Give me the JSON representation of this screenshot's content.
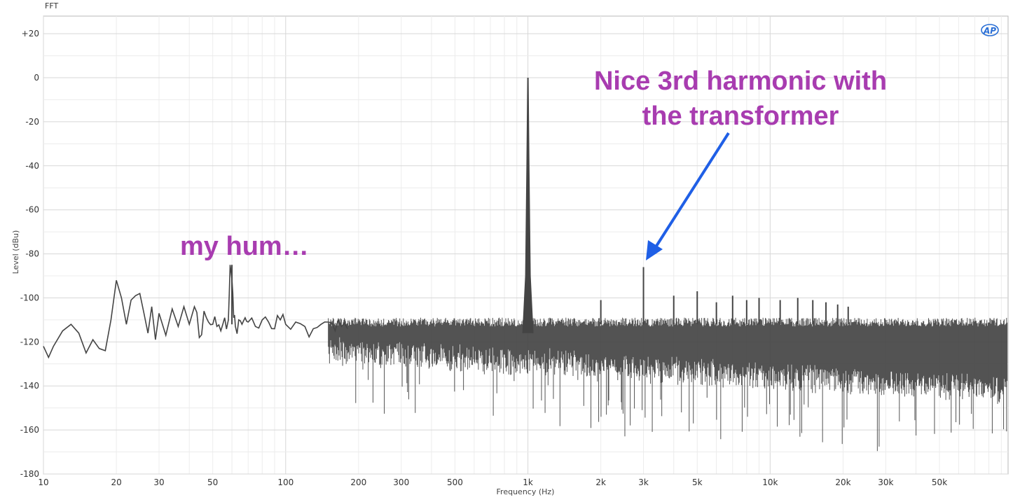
{
  "panel_title": "FFT",
  "logo_text": "AP",
  "colors": {
    "trace": "#444444",
    "grid_major": "#d7d7d7",
    "grid_minor": "#ececec",
    "annotation": "#a83cb0",
    "arrow": "#1f5fe6",
    "logo": "#2a6fd6"
  },
  "annotations": {
    "hum": "my hum…",
    "harmonic_line1": "Nice 3rd harmonic with",
    "harmonic_line2": "the transformer"
  },
  "chart_data": {
    "type": "line",
    "title": "FFT",
    "xlabel": "Frequency (Hz)",
    "ylabel": "Level (dBu)",
    "x_scale": "log",
    "xlim": [
      10,
      96000
    ],
    "ylim": [
      -180,
      28
    ],
    "grid": true,
    "x_ticks": [
      {
        "value": 10,
        "label": "10"
      },
      {
        "value": 20,
        "label": "20"
      },
      {
        "value": 30,
        "label": "30"
      },
      {
        "value": 50,
        "label": "50"
      },
      {
        "value": 100,
        "label": "100"
      },
      {
        "value": 200,
        "label": "200"
      },
      {
        "value": 300,
        "label": "300"
      },
      {
        "value": 500,
        "label": "500"
      },
      {
        "value": 1000,
        "label": "1k"
      },
      {
        "value": 2000,
        "label": "2k"
      },
      {
        "value": 3000,
        "label": "3k"
      },
      {
        "value": 5000,
        "label": "5k"
      },
      {
        "value": 10000,
        "label": "10k"
      },
      {
        "value": 20000,
        "label": "20k"
      },
      {
        "value": 30000,
        "label": "30k"
      },
      {
        "value": 50000,
        "label": "50k"
      }
    ],
    "y_ticks": [
      {
        "value": 20,
        "label": "+20"
      },
      {
        "value": 0,
        "label": "0"
      },
      {
        "value": -20,
        "label": "-20"
      },
      {
        "value": -40,
        "label": "-40"
      },
      {
        "value": -60,
        "label": "-60"
      },
      {
        "value": -80,
        "label": "-80"
      },
      {
        "value": -100,
        "label": "-100"
      },
      {
        "value": -120,
        "label": "-120"
      },
      {
        "value": -140,
        "label": "-140"
      },
      {
        "value": -160,
        "label": "-160"
      },
      {
        "value": -180,
        "label": "-180"
      }
    ],
    "series": [
      {
        "low_frequency_trace": {
          "x": [
            10,
            10.5,
            11,
            12,
            13,
            14,
            15,
            16,
            17,
            18,
            19,
            20,
            21,
            22,
            23,
            24,
            25,
            26,
            27,
            28,
            29,
            30,
            32,
            34,
            36,
            38,
            40,
            42,
            44,
            46,
            48,
            50,
            52,
            54,
            56,
            58,
            59,
            60,
            61,
            62,
            64,
            66,
            68,
            70,
            75,
            80,
            85,
            90,
            95,
            100,
            110,
            120,
            130,
            140,
            150,
            160,
            170,
            180
          ],
          "y": [
            -122,
            -127,
            -122,
            -115,
            -112,
            -116,
            -125,
            -119,
            -123,
            -124,
            -110,
            -92,
            -100,
            -112,
            -101,
            -99,
            -98,
            -107,
            -116,
            -104,
            -119,
            -107,
            -117,
            -105,
            -113,
            -104,
            -112,
            -104,
            -118,
            -106,
            -111,
            -112,
            -113,
            -115,
            -109,
            -110,
            -85,
            -92,
            -109,
            -113,
            -110,
            -112,
            -109,
            -111,
            -113,
            -110,
            -111,
            -114,
            -110,
            -112,
            -111,
            -113,
            -114,
            -112,
            -111,
            -115,
            -113,
            -114
          ]
        },
        "peaks": [
          {
            "x": 60,
            "y": -85
          },
          {
            "x": 1000,
            "y": 0
          },
          {
            "x": 2000,
            "y": -101
          },
          {
            "x": 3000,
            "y": -86
          },
          {
            "x": 4000,
            "y": -99
          },
          {
            "x": 5000,
            "y": -97
          },
          {
            "x": 6000,
            "y": -102
          },
          {
            "x": 7000,
            "y": -99
          },
          {
            "x": 8000,
            "y": -101
          },
          {
            "x": 9000,
            "y": -100
          },
          {
            "x": 11000,
            "y": -101
          },
          {
            "x": 13000,
            "y": -100
          },
          {
            "x": 15000,
            "y": -101
          },
          {
            "x": 17000,
            "y": -102
          },
          {
            "x": 19000,
            "y": -103
          },
          {
            "x": 21000,
            "y": -104
          }
        ],
        "noise_floor_top": -112,
        "noise_floor_bottom_min": -170
      }
    ]
  }
}
